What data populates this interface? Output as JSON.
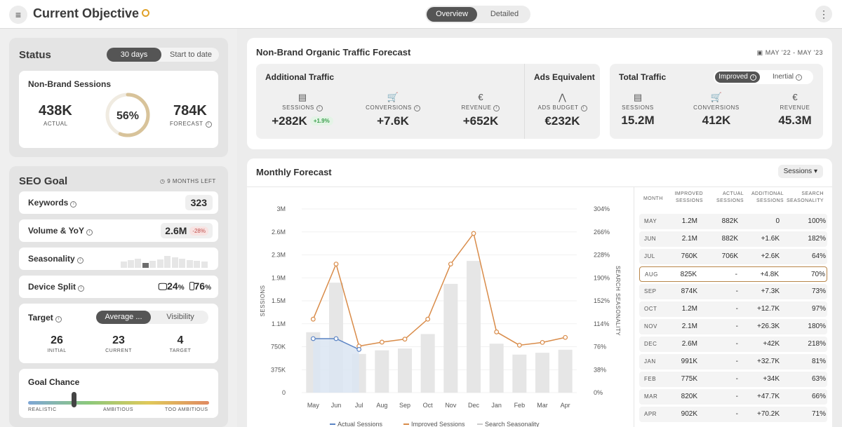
{
  "header": {
    "title": "Current Objective",
    "view_options": [
      "Overview",
      "Detailed"
    ],
    "active_view": "Overview"
  },
  "status": {
    "title": "Status",
    "range_options": [
      "30 days",
      "Start to date"
    ],
    "card_title": "Non-Brand Sessions",
    "actual_value": "438K",
    "actual_label": "ACTUAL",
    "progress_pct": "56%",
    "progress_fraction": 0.56,
    "forecast_value": "784K",
    "forecast_label": "FORECAST"
  },
  "seo_goal": {
    "title": "SEO Goal",
    "months_left": "9 MONTHS LEFT",
    "keywords_label": "Keywords",
    "keywords_value": "323",
    "volume_label": "Volume & YoY",
    "volume_value": "2.6M",
    "volume_change": "-28%",
    "seasonality_label": "Seasonality",
    "device_label": "Device Split",
    "desktop_pct": "24",
    "mobile_pct": "76",
    "pct_unit": "%",
    "target_label": "Target",
    "target_options": [
      "Average ...",
      "Visibility"
    ],
    "initial_value": "26",
    "initial_label": "INITIAL",
    "current_value": "23",
    "current_label": "CURRENT",
    "target_value": "4",
    "target_sub_label": "TARGET",
    "goal_chance_label": "Goal Chance",
    "goal_chance_scale": [
      "REALISTIC",
      "AMBITIOUS",
      "TOO AMBITIOUS"
    ],
    "goal_chance_level": 0.25
  },
  "forecast_summary": {
    "title": "Non-Brand Organic Traffic Forecast",
    "date_range": "MAY '22 - MAY '23",
    "additional": {
      "title": "Additional Traffic",
      "sessions_label": "SESSIONS",
      "sessions_value": "+282K",
      "sessions_change": "+1.9%",
      "conversions_label": "CONVERSIONS",
      "conversions_value": "+7.6K",
      "revenue_label": "REVENUE",
      "revenue_value": "+652K"
    },
    "ads": {
      "title": "Ads Equivalent",
      "budget_label": "ADS BUDGET",
      "budget_value": "€232K"
    },
    "total": {
      "title": "Total Traffic",
      "toggle_options": [
        "Improved",
        "Inertial"
      ],
      "sessions_label": "SESSIONS",
      "sessions_value": "15.2M",
      "conversions_label": "CONVERSIONS",
      "conversions_value": "412K",
      "revenue_label": "REVENUE",
      "revenue_value": "45.3M"
    }
  },
  "monthly": {
    "title": "Monthly Forecast",
    "metric_dropdown": "Sessions",
    "table": {
      "headers": [
        "MONTH",
        "IMPROVED SESSIONS",
        "ACTUAL SESSIONS",
        "ADDITIONAL SESSIONS",
        "SEARCH SEASONALITY"
      ],
      "rows": [
        [
          "MAY",
          "1.2M",
          "882K",
          "0",
          "100%"
        ],
        [
          "JUN",
          "2.1M",
          "882K",
          "+1.6K",
          "182%"
        ],
        [
          "JUL",
          "760K",
          "706K",
          "+2.6K",
          "64%"
        ],
        [
          "AUG",
          "825K",
          "-",
          "+4.8K",
          "70%"
        ],
        [
          "SEP",
          "874K",
          "-",
          "+7.3K",
          "73%"
        ],
        [
          "OCT",
          "1.2M",
          "-",
          "+12.7K",
          "97%"
        ],
        [
          "NOV",
          "2.1M",
          "-",
          "+26.3K",
          "180%"
        ],
        [
          "DEC",
          "2.6M",
          "-",
          "+42K",
          "218%"
        ],
        [
          "JAN",
          "991K",
          "-",
          "+32.7K",
          "81%"
        ],
        [
          "FEB",
          "775K",
          "-",
          "+34K",
          "63%"
        ],
        [
          "MAR",
          "820K",
          "-",
          "+47.7K",
          "66%"
        ],
        [
          "APR",
          "902K",
          "-",
          "+70.2K",
          "71%"
        ]
      ],
      "highlighted_row": 3
    }
  },
  "chart_data": {
    "type": "bar",
    "categories": [
      "May",
      "Jun",
      "Jul",
      "Aug",
      "Sep",
      "Oct",
      "Nov",
      "Dec",
      "Jan",
      "Feb",
      "Mar",
      "Apr"
    ],
    "ylabel": "SESSIONS",
    "y2label": "SEARCH SEASONALITY",
    "ylim": [
      0,
      3000000
    ],
    "y2lim": [
      0,
      304
    ],
    "yticks": [
      "0",
      "375K",
      "750K",
      "1.1M",
      "1.5M",
      "1.9M",
      "2.3M",
      "2.6M",
      "3M"
    ],
    "y2ticks": [
      "0%",
      "38%",
      "76%",
      "114%",
      "152%",
      "190%",
      "228%",
      "266%",
      "304%"
    ],
    "series": [
      {
        "name": "Actual Sessions",
        "type": "line",
        "color": "#5b84c4",
        "values": [
          882000,
          882000,
          706000,
          null,
          null,
          null,
          null,
          null,
          null,
          null,
          null,
          null
        ]
      },
      {
        "name": "Improved Sessions",
        "type": "line",
        "color": "#d98c4a",
        "values": [
          1200000,
          2100000,
          760000,
          825000,
          874000,
          1200000,
          2100000,
          2600000,
          991000,
          775000,
          820000,
          902000
        ]
      },
      {
        "name": "Search Seasonality",
        "type": "bar",
        "color": "#e3e3e3",
        "values": [
          100,
          182,
          64,
          70,
          73,
          97,
          180,
          218,
          81,
          63,
          66,
          71
        ]
      }
    ],
    "legend_position": "bottom"
  },
  "colors": {
    "accent_dark": "#555555",
    "progress_ring": "#d8c39a",
    "improved_line": "#d98c4a",
    "actual_line": "#5b84c4",
    "positive": "#3b9f4d",
    "negative": "#c0504d"
  }
}
